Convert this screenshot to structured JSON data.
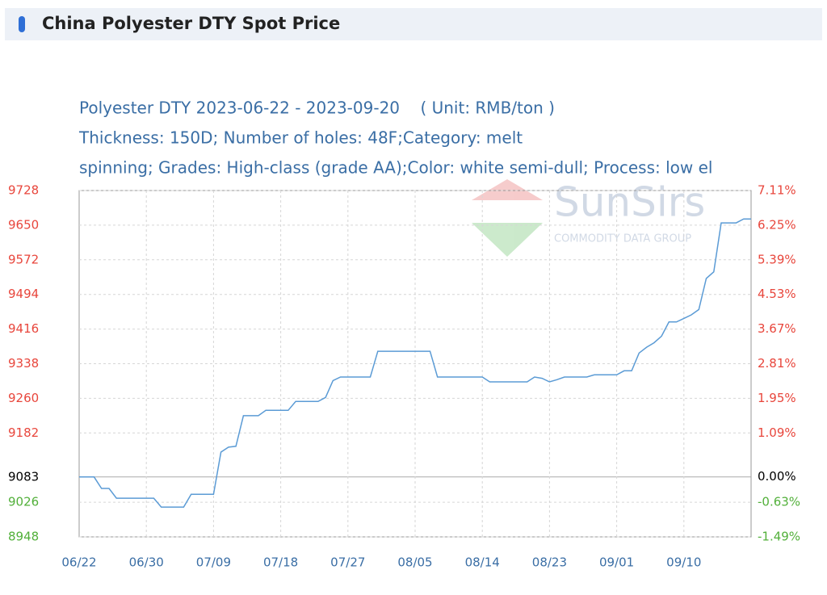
{
  "page_title": "China Polyester DTY Spot Price",
  "chart_data": {
    "type": "line",
    "title": "Polyester DTY 2023-06-22 - 2023-09-20    ( Unit: RMB/ton )",
    "subtitle": [
      "Thickness: 150D; Number of holes: 48F;Category: melt",
      "spinning; Grades: High-class (grade AA);Color: white semi-dull; Process: low el"
    ],
    "watermark": {
      "brand": "SunSirs",
      "tagline": "COMMODITY DATA GROUP"
    },
    "categories": [
      "06/22",
      null,
      null,
      null,
      null,
      null,
      null,
      null,
      null,
      "06/30",
      null,
      null,
      null,
      null,
      null,
      null,
      null,
      null,
      "07/09",
      null,
      null,
      null,
      null,
      null,
      null,
      null,
      null,
      "07/18",
      null,
      null,
      null,
      null,
      null,
      null,
      null,
      null,
      "07/27",
      null,
      null,
      null,
      null,
      null,
      null,
      null,
      null,
      "08/05",
      null,
      null,
      null,
      null,
      null,
      null,
      null,
      null,
      "08/14",
      null,
      null,
      null,
      null,
      null,
      null,
      null,
      null,
      "08/23",
      null,
      null,
      null,
      null,
      null,
      null,
      null,
      null,
      "09/01",
      null,
      null,
      null,
      null,
      null,
      null,
      null,
      null,
      "09/10",
      null,
      null,
      null,
      null,
      null,
      null,
      null,
      null,
      null
    ],
    "values": [
      9083,
      9083,
      9083,
      9057,
      9057,
      9035,
      9035,
      9035,
      9035,
      9035,
      9035,
      9015,
      9015,
      9015,
      9015,
      9044,
      9044,
      9044,
      9044,
      9139,
      9150,
      9152,
      9221,
      9221,
      9221,
      9233,
      9233,
      9233,
      9233,
      9253,
      9253,
      9253,
      9253,
      9262,
      9300,
      9308,
      9308,
      9308,
      9308,
      9308,
      9366,
      9366,
      9366,
      9366,
      9366,
      9366,
      9366,
      9366,
      9308,
      9308,
      9308,
      9308,
      9308,
      9308,
      9308,
      9297,
      9297,
      9297,
      9297,
      9297,
      9297,
      9308,
      9305,
      9297,
      9302,
      9308,
      9308,
      9308,
      9308,
      9313,
      9313,
      9313,
      9313,
      9322,
      9322,
      9362,
      9375,
      9385,
      9400,
      9432,
      9432,
      9440,
      9448,
      9460,
      9530,
      9545,
      9655,
      9655,
      9655,
      9664,
      9664
    ],
    "color": "#5b9bd5",
    "ylim": [
      8948,
      9728
    ],
    "yticks": [
      9728,
      9650,
      9572,
      9494,
      9416,
      9338,
      9260,
      9182,
      9083,
      9026,
      8948
    ],
    "y2lim": [
      -1.49,
      7.11
    ],
    "y2ticks": [
      {
        "value": 7.11,
        "label": "7.11%"
      },
      {
        "value": 6.25,
        "label": "6.25%"
      },
      {
        "value": 5.39,
        "label": "5.39%"
      },
      {
        "value": 4.53,
        "label": "4.53%"
      },
      {
        "value": 3.67,
        "label": "3.67%"
      },
      {
        "value": 2.81,
        "label": "2.81%"
      },
      {
        "value": 1.95,
        "label": "1.95%"
      },
      {
        "value": 1.09,
        "label": "1.09%"
      },
      {
        "value": 0,
        "label": "0.00%"
      },
      {
        "value": -0.63,
        "label": "-0.63%"
      },
      {
        "value": -1.49,
        "label": "-1.49%"
      }
    ],
    "tick_colors": {
      "up": "#e8463c",
      "zero": "#000000",
      "down": "#52b03a"
    },
    "grid": true
  }
}
